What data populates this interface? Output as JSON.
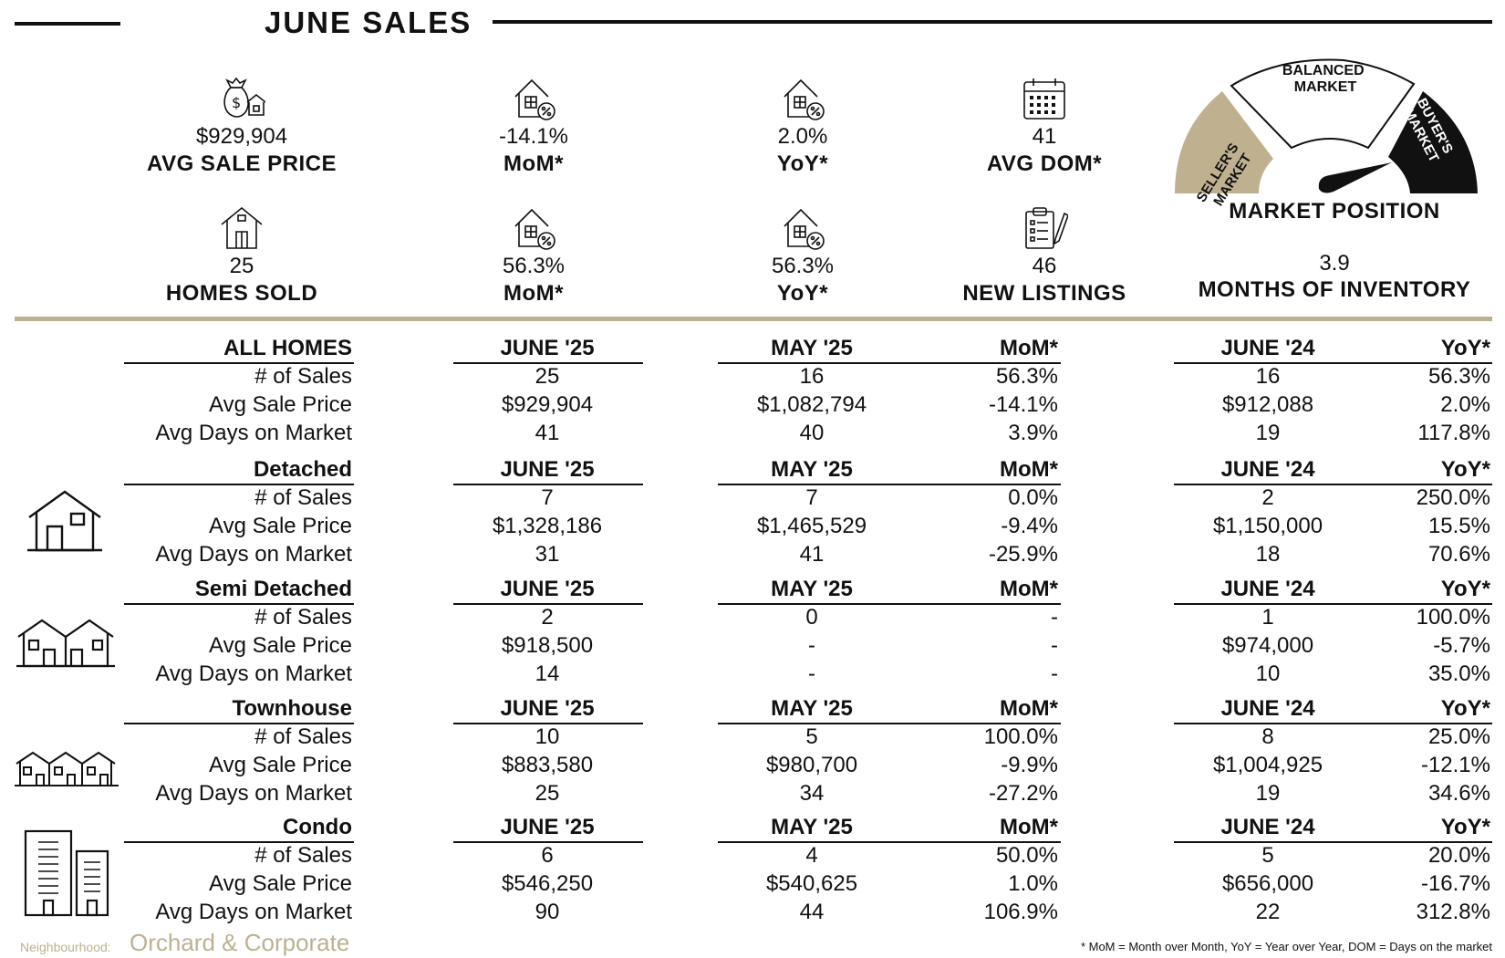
{
  "title": "JUNE SALES",
  "stats_row1": [
    {
      "icon": "money-bag-house-icon",
      "value": "$929,904",
      "label": "AVG SALE PRICE"
    },
    {
      "icon": "house-percent-icon",
      "value": "-14.1%",
      "label": "MoM*"
    },
    {
      "icon": "house-percent-icon",
      "value": "2.0%",
      "label": "YoY*"
    },
    {
      "icon": "calendar-icon",
      "value": "41",
      "label": "AVG DOM*"
    }
  ],
  "stats_row2": [
    {
      "icon": "house-outline-icon",
      "value": "25",
      "label": "HOMES SOLD"
    },
    {
      "icon": "house-percent-icon",
      "value": "56.3%",
      "label": "MoM*"
    },
    {
      "icon": "house-percent-icon",
      "value": "56.3%",
      "label": "YoY*"
    },
    {
      "icon": "clipboard-pencil-icon",
      "value": "46",
      "label": "NEW LISTINGS"
    }
  ],
  "gauge": {
    "segments": [
      "SELLER'S MARKET",
      "BALANCED MARKET",
      "BUYER'S MARKET"
    ],
    "seller_line1": "SELLER'S",
    "seller_line2": "MARKET",
    "balanced_line1": "BALANCED",
    "balanced_line2": "MARKET",
    "buyer_line1": "BUYER'S",
    "buyer_line2": "MARKET",
    "label": "MARKET POSITION",
    "colors": {
      "seller": "#bfb08f",
      "balanced": "#ffffff",
      "buyer": "#111111",
      "needle": "#111111"
    }
  },
  "inventory": {
    "value": "3.9",
    "label": "MONTHS OF INVENTORY"
  },
  "table": {
    "sections": [
      {
        "name": "ALL HOMES",
        "icon": "",
        "headers": [
          "JUNE '25",
          "MAY '25",
          "MoM*",
          "JUNE '24",
          "YoY*"
        ],
        "rows": [
          {
            "label": "# of Sales",
            "cur": "25",
            "prev": "16",
            "mom": "56.3%",
            "ly": "16",
            "yoy": "56.3%"
          },
          {
            "label": "Avg Sale Price",
            "cur": "$929,904",
            "prev": "$1,082,794",
            "mom": "-14.1%",
            "ly": "$912,088",
            "yoy": "2.0%"
          },
          {
            "label": "Avg Days on Market",
            "cur": "41",
            "prev": "40",
            "mom": "3.9%",
            "ly": "19",
            "yoy": "117.8%"
          }
        ]
      },
      {
        "name": "Detached",
        "icon": "detached-house-icon",
        "headers": [
          "JUNE '25",
          "MAY '25",
          "MoM*",
          "JUNE '24",
          "YoY*"
        ],
        "rows": [
          {
            "label": "# of Sales",
            "cur": "7",
            "prev": "7",
            "mom": "0.0%",
            "ly": "2",
            "yoy": "250.0%"
          },
          {
            "label": "Avg Sale Price",
            "cur": "$1,328,186",
            "prev": "$1,465,529",
            "mom": "-9.4%",
            "ly": "$1,150,000",
            "yoy": "15.5%"
          },
          {
            "label": "Avg Days on Market",
            "cur": "31",
            "prev": "41",
            "mom": "-25.9%",
            "ly": "18",
            "yoy": "70.6%"
          }
        ]
      },
      {
        "name": "Semi Detached",
        "icon": "semi-detached-house-icon",
        "headers": [
          "JUNE '25",
          "MAY '25",
          "MoM*",
          "JUNE '24",
          "YoY*"
        ],
        "rows": [
          {
            "label": "# of Sales",
            "cur": "2",
            "prev": "0",
            "mom": "-",
            "ly": "1",
            "yoy": "100.0%"
          },
          {
            "label": "Avg Sale Price",
            "cur": "$918,500",
            "prev": "-",
            "mom": "-",
            "ly": "$974,000",
            "yoy": "-5.7%"
          },
          {
            "label": "Avg Days on Market",
            "cur": "14",
            "prev": "-",
            "mom": "-",
            "ly": "10",
            "yoy": "35.0%"
          }
        ]
      },
      {
        "name": "Townhouse",
        "icon": "townhouse-icon",
        "headers": [
          "JUNE '25",
          "MAY '25",
          "MoM*",
          "JUNE '24",
          "YoY*"
        ],
        "rows": [
          {
            "label": "# of Sales",
            "cur": "10",
            "prev": "5",
            "mom": "100.0%",
            "ly": "8",
            "yoy": "25.0%"
          },
          {
            "label": "Avg Sale Price",
            "cur": "$883,580",
            "prev": "$980,700",
            "mom": "-9.9%",
            "ly": "$1,004,925",
            "yoy": "-12.1%"
          },
          {
            "label": "Avg Days on Market",
            "cur": "25",
            "prev": "34",
            "mom": "-27.2%",
            "ly": "19",
            "yoy": "34.6%"
          }
        ]
      },
      {
        "name": "Condo",
        "icon": "condo-building-icon",
        "headers": [
          "JUNE '25",
          "MAY '25",
          "MoM*",
          "JUNE '24",
          "YoY*"
        ],
        "rows": [
          {
            "label": "# of Sales",
            "cur": "6",
            "prev": "4",
            "mom": "50.0%",
            "ly": "5",
            "yoy": "20.0%"
          },
          {
            "label": "Avg Sale Price",
            "cur": "$546,250",
            "prev": "$540,625",
            "mom": "1.0%",
            "ly": "$656,000",
            "yoy": "-16.7%"
          },
          {
            "label": "Avg Days on Market",
            "cur": "90",
            "prev": "44",
            "mom": "106.9%",
            "ly": "22",
            "yoy": "312.8%"
          }
        ]
      }
    ]
  },
  "footer": {
    "neighbourhood_label": "Neighbourhood:",
    "neighbourhood_name": "Orchard & Corporate",
    "note": "* MoM = Month over Month, YoY = Year over Year, DOM = Days on the market",
    "accent_color": "#bfb08f"
  }
}
